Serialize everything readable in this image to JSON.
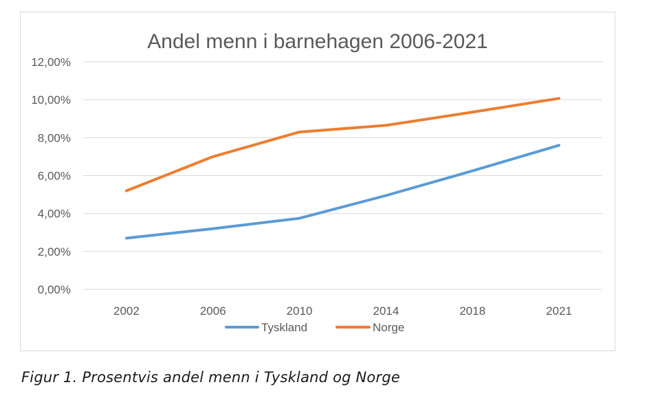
{
  "caption": "Figur 1. Prosentvis andel menn i Tyskland og Norge",
  "colors": {
    "Tyskland": "#5b9bd5",
    "Norge": "#ed7d31",
    "grid": "#d9d9d9",
    "text": "#595959"
  },
  "chart_data": {
    "type": "line",
    "title": "Andel menn i barnehagen 2006-2021",
    "xlabel": "",
    "ylabel": "",
    "categories": [
      "2002",
      "2006",
      "2010",
      "2014",
      "2018",
      "2021"
    ],
    "yticks": [
      "0,00%",
      "2,00%",
      "4,00%",
      "6,00%",
      "8,00%",
      "10,00%",
      "12,00%"
    ],
    "ylim": [
      0,
      12
    ],
    "grid": true,
    "legend_position": "bottom",
    "series": [
      {
        "name": "Tyskland",
        "values": [
          2.7,
          3.2,
          3.75,
          4.95,
          6.25,
          7.6
        ]
      },
      {
        "name": "Norge",
        "values": [
          5.2,
          7.0,
          8.3,
          8.65,
          9.35,
          10.07
        ]
      }
    ]
  }
}
